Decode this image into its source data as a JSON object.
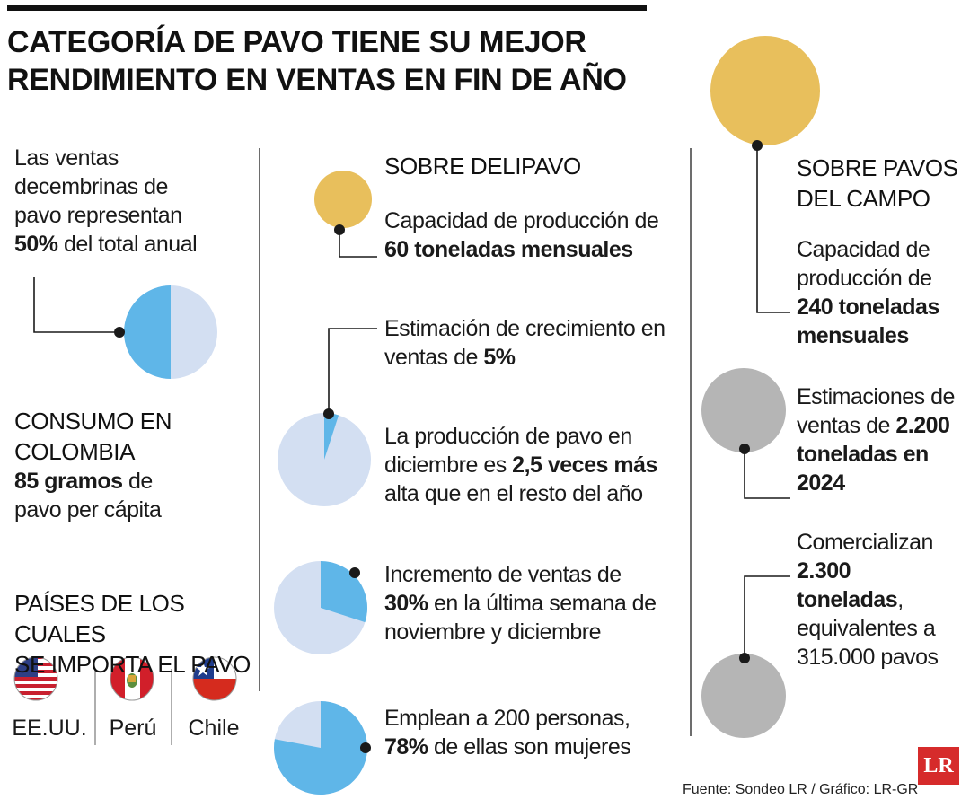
{
  "header": {
    "title_line1": "CATEGORÍA DE PAVO TIENE SU MEJOR",
    "title_line2": "RENDIMIENTO EN VENTAS EN FIN DE AÑO"
  },
  "left": {
    "stat1": {
      "line1": "Las ventas",
      "line2": "decembrinas de",
      "line3": "pavo representan",
      "bold": "50%",
      "rest": " del total anual",
      "pie_share": 0.5
    },
    "consumo": {
      "head1": "CONSUMO EN",
      "head2": "COLOMBIA",
      "bold": "85 gramos",
      "rest": " de",
      "line3": "pavo per cápita"
    },
    "paises": {
      "head1": "PAÍSES DE LOS CUALES",
      "head2": "SE IMPORTA EL PAVO",
      "countries": [
        "EE.UU.",
        "Perú",
        "Chile"
      ]
    }
  },
  "middle": {
    "heading": "SOBRE DELIPAVO",
    "capacity": {
      "line1": "Capacidad de producción de",
      "bold": "60 toneladas mensuales"
    },
    "growth": {
      "line1": "Estimación de crecimiento en",
      "pre": "ventas de ",
      "bold": "5%",
      "pie_share": 0.05
    },
    "production": {
      "line1": "La producción de pavo en",
      "pre": "diciembre es ",
      "bold": "2,5 veces más",
      "line3": "alta que en el resto del año"
    },
    "increase": {
      "line1": "Incremento de ventas de",
      "bold": "30%",
      "rest": " en la última semana de",
      "line3": "noviembre y diciembre",
      "pie_share": 0.3
    },
    "employees": {
      "line1": "Emplean a 200 personas,",
      "bold": "78%",
      "rest": " de ellas son mujeres",
      "pie_share": 0.78
    }
  },
  "right": {
    "heading1": "SOBRE PAVOS",
    "heading2": "DEL CAMPO",
    "capacity": {
      "line1": "Capacidad de",
      "line2": "producción de",
      "bold1": "240 toneladas",
      "bold2": "mensuales"
    },
    "estimate": {
      "line1": "Estimaciones de",
      "pre": "ventas de ",
      "bold1": "2.200",
      "bold2": "toneladas en",
      "bold3": "2024"
    },
    "sales": {
      "line1": "Comercializan",
      "bold1": "2.300",
      "bold2": "toneladas",
      "comma": ",",
      "line4": "equivalentes a",
      "line5": "315.000 pavos"
    }
  },
  "footer": {
    "source": "Fuente: Sondeo LR / Gráfico: LR-GR",
    "logo": "LR"
  },
  "colors": {
    "pie_blue": "#5fb6e8",
    "pie_light": "#d3dff2",
    "gold": "#e8bf5c",
    "gray": "#b5b5b5",
    "line": "#1a1a1a"
  }
}
